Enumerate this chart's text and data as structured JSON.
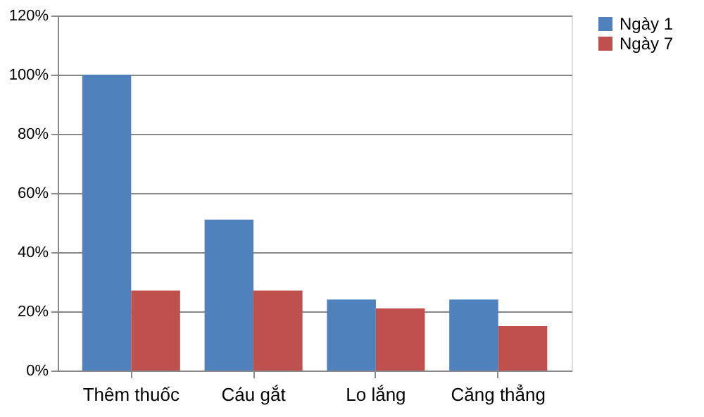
{
  "chart_data": {
    "type": "bar",
    "categories": [
      "Thêm thuốc",
      "Cáu gắt",
      "Lo lắng",
      "Căng thẳng"
    ],
    "series": [
      {
        "name": "Ngày 1",
        "color": "#4f81bd",
        "values": [
          100,
          51,
          24,
          24
        ]
      },
      {
        "name": "Ngày 7",
        "color": "#c0504d",
        "values": [
          27,
          27,
          21,
          15
        ]
      }
    ],
    "ylim": [
      0,
      120
    ],
    "yticks": [
      {
        "value": 0,
        "label": "0%"
      },
      {
        "value": 20,
        "label": "20%"
      },
      {
        "value": 40,
        "label": "40%"
      },
      {
        "value": 60,
        "label": "60%"
      },
      {
        "value": 80,
        "label": "80%"
      },
      {
        "value": 100,
        "label": "100%"
      },
      {
        "value": 120,
        "label": "120%"
      }
    ],
    "grid": "y",
    "legend": "right"
  }
}
